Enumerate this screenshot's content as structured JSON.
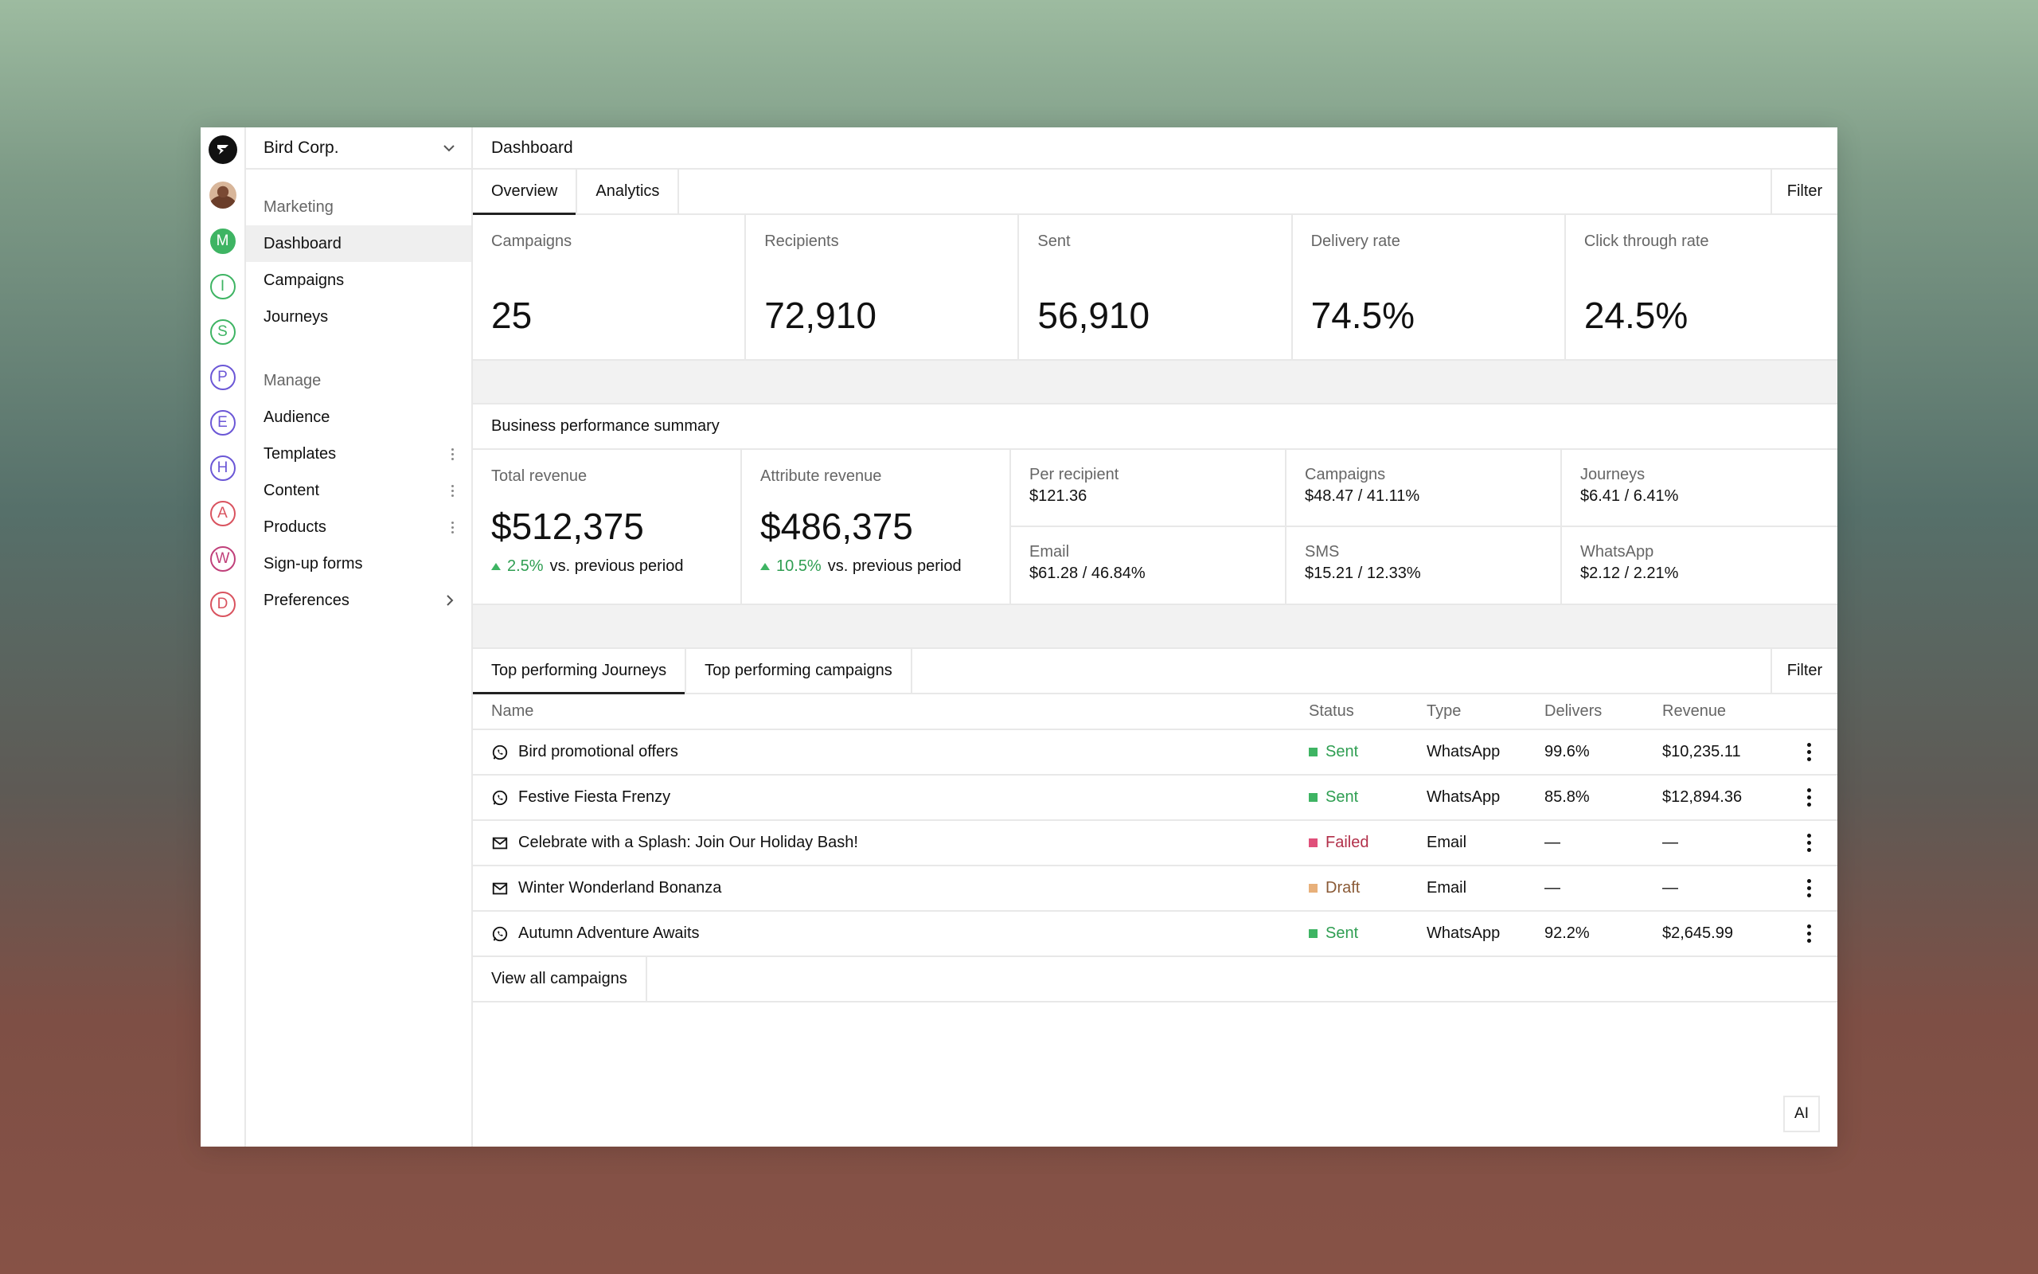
{
  "org": {
    "name": "Bird Corp."
  },
  "rail": {
    "letters": [
      {
        "letter": "M",
        "color": "#3eb463",
        "filled": true
      },
      {
        "letter": "I",
        "color": "#3eb463"
      },
      {
        "letter": "S",
        "color": "#3eb463"
      },
      {
        "letter": "P",
        "color": "#6b57d6"
      },
      {
        "letter": "E",
        "color": "#6b57d6"
      },
      {
        "letter": "H",
        "color": "#6b57d6"
      },
      {
        "letter": "A",
        "color": "#d9535f"
      },
      {
        "letter": "W",
        "color": "#c0407a"
      },
      {
        "letter": "D",
        "color": "#d9535f"
      }
    ]
  },
  "sidebar": {
    "marketing_label": "Marketing",
    "marketing_items": [
      "Dashboard",
      "Campaigns",
      "Journeys"
    ],
    "manage_label": "Manage",
    "manage_items": [
      "Audience",
      "Templates",
      "Content",
      "Products",
      "Sign-up forms",
      "Preferences"
    ]
  },
  "header": {
    "title": "Dashboard"
  },
  "tabs": {
    "overview": "Overview",
    "analytics": "Analytics",
    "filter": "Filter"
  },
  "stats": [
    {
      "label": "Campaigns",
      "value": "25"
    },
    {
      "label": "Recipients",
      "value": "72,910"
    },
    {
      "label": "Sent",
      "value": "56,910"
    },
    {
      "label": "Delivery rate",
      "value": "74.5%"
    },
    {
      "label": "Click through rate",
      "value": "24.5%"
    }
  ],
  "business": {
    "title": "Business performance summary",
    "total": {
      "label": "Total revenue",
      "value": "$512,375",
      "change": "2.5%",
      "suffix": "vs. previous period"
    },
    "attribute": {
      "label": "Attribute revenue",
      "value": "$486,375",
      "change": "10.5%",
      "suffix": "vs. previous period"
    },
    "breakdown": [
      {
        "label": "Per recipient",
        "value": "$121.36"
      },
      {
        "label": "Campaigns",
        "value": "$48.47 / 41.11%"
      },
      {
        "label": "Journeys",
        "value": "$6.41 / 6.41%"
      },
      {
        "label": "Email",
        "value": "$61.28 / 46.84%"
      },
      {
        "label": "SMS",
        "value": "$15.21 / 12.33%"
      },
      {
        "label": "WhatsApp",
        "value": "$2.12 / 2.21%"
      }
    ]
  },
  "top": {
    "tab_journeys": "Top performing Journeys",
    "tab_campaigns": "Top performing campaigns",
    "filter": "Filter",
    "columns": {
      "name": "Name",
      "status": "Status",
      "type": "Type",
      "delivers": "Delivers",
      "revenue": "Revenue"
    },
    "rows": [
      {
        "name": "Bird promotional offers",
        "channel": "whatsapp",
        "status": "Sent",
        "status_color": "#3eb463",
        "status_text_color": "#2f9e52",
        "type": "WhatsApp",
        "delivers": "99.6%",
        "revenue": "$10,235.11"
      },
      {
        "name": "Festive Fiesta Frenzy",
        "channel": "whatsapp",
        "status": "Sent",
        "status_color": "#3eb463",
        "status_text_color": "#2f9e52",
        "type": "WhatsApp",
        "delivers": "85.8%",
        "revenue": "$12,894.36"
      },
      {
        "name": "Celebrate with a Splash: Join Our Holiday Bash!",
        "channel": "email",
        "status": "Failed",
        "status_color": "#e0507a",
        "status_text_color": "#b2304a",
        "type": "Email",
        "delivers": "—",
        "revenue": "—"
      },
      {
        "name": "Winter Wonderland Bonanza",
        "channel": "email",
        "status": "Draft",
        "status_color": "#e8b07a",
        "status_text_color": "#8a5a36",
        "type": "Email",
        "delivers": "—",
        "revenue": "—"
      },
      {
        "name": "Autumn Adventure Awaits",
        "channel": "whatsapp",
        "status": "Sent",
        "status_color": "#3eb463",
        "status_text_color": "#2f9e52",
        "type": "WhatsApp",
        "delivers": "92.2%",
        "revenue": "$2,645.99"
      }
    ],
    "view_all": "View all campaigns"
  },
  "ai_button": "AI"
}
